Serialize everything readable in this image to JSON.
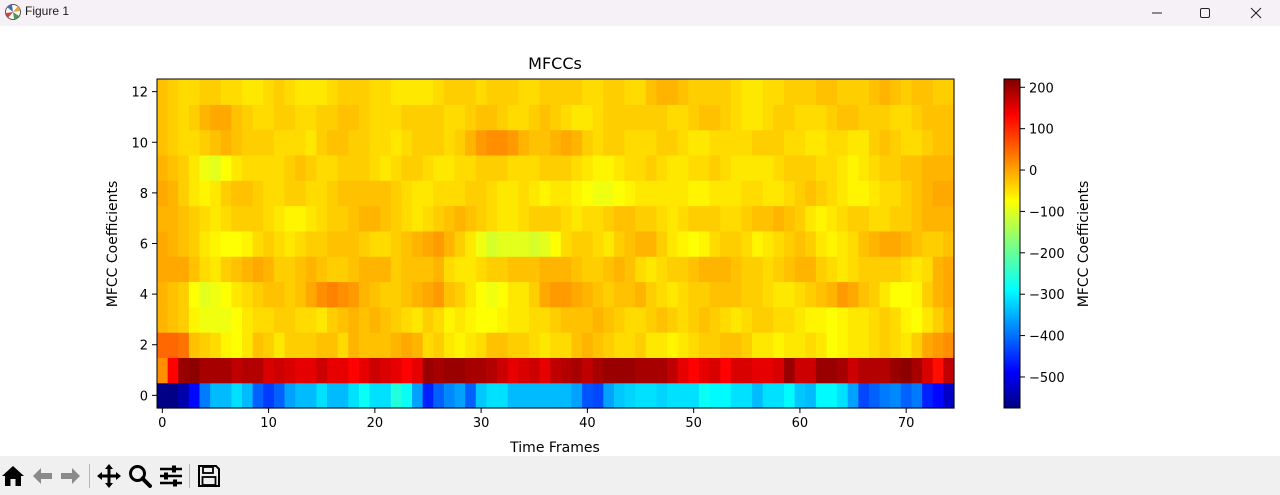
{
  "window": {
    "title": "Figure 1",
    "icon": "matplotlib-logo-icon",
    "controls": [
      "minimize-icon",
      "maximize-icon",
      "close-icon"
    ]
  },
  "toolbar": {
    "buttons": [
      {
        "name": "home-button",
        "icon": "home-icon"
      },
      {
        "name": "back-button",
        "icon": "arrow-left-icon"
      },
      {
        "name": "forward-button",
        "icon": "arrow-right-icon"
      },
      {
        "name": "pan-button",
        "icon": "move-icon"
      },
      {
        "name": "zoom-button",
        "icon": "magnifier-icon"
      },
      {
        "name": "configure-subplots-button",
        "icon": "sliders-icon"
      },
      {
        "name": "save-button",
        "icon": "floppy-disk-icon"
      }
    ]
  },
  "chart_data": {
    "type": "heatmap",
    "title": "MFCCs",
    "xlabel": "Time Frames",
    "ylabel": "MFCC Coefficients",
    "xlim": [
      -0.5,
      74.5
    ],
    "ylim": [
      -0.5,
      12.5
    ],
    "xticks": [
      0,
      10,
      20,
      30,
      40,
      50,
      60,
      70
    ],
    "yticks": [
      0,
      2,
      4,
      6,
      8,
      10,
      12
    ],
    "colormap": "jet",
    "colorbar": {
      "label": "MFCC Coefficients",
      "range": [
        -575,
        220
      ],
      "ticks": [
        200,
        100,
        0,
        -100,
        -200,
        -300,
        -400,
        -500
      ],
      "tick_labels": [
        "200",
        "100",
        "0",
        "−100",
        "−200",
        "−300",
        "−400",
        "−500"
      ]
    },
    "n_frames": 75,
    "n_coefficients": 13,
    "rows": [
      [
        -570,
        -570,
        -540,
        -470,
        -380,
        -330,
        -330,
        -300,
        -330,
        -400,
        -430,
        -400,
        -350,
        -330,
        -330,
        -300,
        -330,
        -330,
        -300,
        -270,
        -300,
        -300,
        -250,
        -270,
        -350,
        -450,
        -400,
        -370,
        -350,
        -400,
        -320,
        -300,
        -300,
        -330,
        -330,
        -330,
        -330,
        -330,
        -330,
        -350,
        -410,
        -420,
        -350,
        -320,
        -310,
        -300,
        -300,
        -310,
        -300,
        -300,
        -300,
        -270,
        -280,
        -280,
        -300,
        -300,
        -330,
        -300,
        -300,
        -280,
        -320,
        -330,
        -280,
        -280,
        -300,
        -350,
        -420,
        -400,
        -380,
        -370,
        -400,
        -380,
        -450,
        -470,
        -520
      ],
      [
        10,
        120,
        200,
        210,
        190,
        190,
        190,
        170,
        180,
        180,
        150,
        160,
        150,
        140,
        140,
        160,
        140,
        140,
        120,
        140,
        160,
        150,
        140,
        120,
        140,
        200,
        190,
        200,
        200,
        190,
        190,
        180,
        160,
        140,
        150,
        160,
        140,
        170,
        180,
        190,
        170,
        190,
        200,
        200,
        200,
        190,
        190,
        190,
        170,
        140,
        120,
        140,
        150,
        120,
        150,
        150,
        140,
        140,
        150,
        200,
        160,
        160,
        200,
        200,
        190,
        160,
        180,
        180,
        180,
        200,
        210,
        190,
        150,
        110,
        170
      ],
      [
        40,
        40,
        30,
        -30,
        -40,
        -50,
        -70,
        -80,
        -60,
        -30,
        -40,
        -60,
        -40,
        -40,
        -40,
        -30,
        -30,
        -50,
        -20,
        -30,
        -30,
        -30,
        -20,
        -10,
        -20,
        -50,
        -40,
        -60,
        -70,
        -60,
        -50,
        -30,
        -30,
        -40,
        -40,
        -50,
        -60,
        -50,
        -50,
        -30,
        -20,
        -30,
        -40,
        -50,
        -50,
        -40,
        -60,
        -60,
        -70,
        -60,
        -50,
        -40,
        -40,
        -30,
        -30,
        -40,
        -60,
        -60,
        -70,
        -60,
        -60,
        -50,
        -60,
        -80,
        -70,
        -60,
        -60,
        -50,
        -40,
        -50,
        -60,
        -40,
        -10,
        0,
        10
      ],
      [
        -20,
        -30,
        -40,
        -70,
        -90,
        -90,
        -90,
        -80,
        -60,
        -50,
        -50,
        -40,
        -40,
        -50,
        -50,
        -60,
        -40,
        -30,
        -20,
        -30,
        -20,
        -30,
        -40,
        -50,
        -60,
        -40,
        -50,
        -70,
        -60,
        -70,
        -80,
        -80,
        -70,
        -60,
        -60,
        -50,
        -50,
        -40,
        -30,
        -30,
        -30,
        -20,
        -30,
        -40,
        -50,
        -50,
        -40,
        -30,
        -40,
        -50,
        -40,
        -30,
        -40,
        -50,
        -60,
        -50,
        -40,
        -40,
        -50,
        -50,
        -60,
        -70,
        -70,
        -80,
        -70,
        -60,
        -60,
        -50,
        -40,
        -50,
        -70,
        -80,
        -60,
        -40,
        -20
      ],
      [
        -20,
        -30,
        -40,
        -80,
        -100,
        -90,
        -80,
        -60,
        -50,
        -40,
        -30,
        -30,
        -40,
        -30,
        -10,
        10,
        20,
        10,
        0,
        -20,
        -30,
        -40,
        -40,
        -30,
        -20,
        -10,
        0,
        -30,
        -40,
        -60,
        -80,
        -90,
        -80,
        -60,
        -60,
        -40,
        -10,
        0,
        0,
        -10,
        -20,
        -30,
        -40,
        -30,
        -30,
        -20,
        -40,
        -50,
        -60,
        -50,
        -40,
        -40,
        -30,
        -30,
        -30,
        -40,
        -40,
        -50,
        -60,
        -60,
        -50,
        -40,
        -30,
        -20,
        0,
        -10,
        -30,
        -40,
        -60,
        -80,
        -80,
        -70,
        -40,
        -20,
        -10
      ],
      [
        -10,
        -10,
        -10,
        -30,
        -50,
        -60,
        -40,
        -30,
        -20,
        -10,
        -20,
        -40,
        -40,
        -30,
        -20,
        -30,
        -40,
        -40,
        -30,
        -20,
        -20,
        -20,
        -40,
        -30,
        -30,
        -30,
        -20,
        -50,
        -60,
        -60,
        -50,
        -40,
        -40,
        -30,
        -30,
        -30,
        -20,
        -20,
        -20,
        -30,
        -40,
        -40,
        -30,
        -20,
        -30,
        -50,
        -60,
        -50,
        -40,
        -40,
        -30,
        -20,
        -20,
        -20,
        -30,
        -40,
        -40,
        -50,
        -40,
        -30,
        -20,
        -20,
        -40,
        -50,
        -60,
        -50,
        -40,
        -40,
        -40,
        -40,
        -50,
        -60,
        -50,
        -20,
        -10
      ],
      [
        -10,
        -20,
        -30,
        -40,
        -60,
        -70,
        -80,
        -80,
        -70,
        -50,
        -40,
        -50,
        -60,
        -50,
        -40,
        -40,
        -30,
        -30,
        -30,
        -40,
        -50,
        -50,
        -40,
        -30,
        -20,
        -10,
        0,
        -20,
        -40,
        -60,
        -90,
        -110,
        -100,
        -100,
        -100,
        -110,
        -100,
        -80,
        -50,
        -40,
        -40,
        -50,
        -60,
        -40,
        -30,
        -20,
        -20,
        -40,
        -60,
        -70,
        -80,
        -70,
        -50,
        -40,
        -40,
        -50,
        -70,
        -60,
        -50,
        -40,
        -30,
        -40,
        -60,
        -70,
        -60,
        -50,
        -30,
        -20,
        -10,
        -10,
        -20,
        -30,
        -40,
        -40,
        -30
      ],
      [
        -20,
        -20,
        -30,
        -40,
        -50,
        -60,
        -50,
        -40,
        -40,
        -40,
        -50,
        -60,
        -70,
        -70,
        -60,
        -50,
        -40,
        -40,
        -30,
        -20,
        -20,
        -30,
        -40,
        -50,
        -60,
        -50,
        -40,
        -30,
        -20,
        -30,
        -40,
        -50,
        -60,
        -60,
        -50,
        -40,
        -40,
        -40,
        -50,
        -60,
        -50,
        -50,
        -40,
        -30,
        -30,
        -40,
        -40,
        -50,
        -60,
        -50,
        -40,
        -40,
        -40,
        -50,
        -50,
        -40,
        -30,
        -30,
        -20,
        -30,
        -40,
        -60,
        -70,
        -60,
        -50,
        -40,
        -40,
        -50,
        -50,
        -40,
        -40,
        -30,
        -20,
        -20,
        -20
      ],
      [
        -10,
        -20,
        -40,
        -60,
        -70,
        -60,
        -40,
        -30,
        -30,
        -40,
        -50,
        -50,
        -40,
        -40,
        -50,
        -50,
        -40,
        -30,
        -30,
        -30,
        -30,
        -30,
        -40,
        -50,
        -60,
        -60,
        -50,
        -50,
        -50,
        -40,
        -40,
        -50,
        -60,
        -60,
        -50,
        -60,
        -70,
        -60,
        -60,
        -70,
        -80,
        -90,
        -90,
        -80,
        -70,
        -60,
        -60,
        -60,
        -60,
        -60,
        -70,
        -70,
        -60,
        -60,
        -60,
        -50,
        -50,
        -60,
        -60,
        -50,
        -40,
        -30,
        -40,
        -50,
        -60,
        -70,
        -70,
        -60,
        -50,
        -50,
        -40,
        -30,
        -20,
        -10,
        -10
      ],
      [
        -20,
        -30,
        -40,
        -60,
        -90,
        -100,
        -80,
        -60,
        -50,
        -50,
        -50,
        -50,
        -40,
        -30,
        -40,
        -50,
        -50,
        -40,
        -40,
        -40,
        -50,
        -60,
        -50,
        -40,
        -40,
        -50,
        -60,
        -60,
        -50,
        -50,
        -40,
        -40,
        -40,
        -50,
        -50,
        -50,
        -40,
        -40,
        -40,
        -50,
        -60,
        -70,
        -70,
        -60,
        -50,
        -50,
        -40,
        -50,
        -60,
        -60,
        -50,
        -50,
        -40,
        -50,
        -60,
        -60,
        -60,
        -60,
        -50,
        -40,
        -40,
        -40,
        -50,
        -50,
        -60,
        -70,
        -60,
        -50,
        -40,
        -40,
        -30,
        -30,
        -20,
        -20,
        -20
      ],
      [
        -30,
        -40,
        -50,
        -50,
        -40,
        -30,
        -20,
        -30,
        -40,
        -40,
        -40,
        -50,
        -50,
        -50,
        -60,
        -40,
        -30,
        -30,
        -40,
        -40,
        -50,
        -50,
        -60,
        -50,
        -40,
        -40,
        -40,
        -50,
        -40,
        -20,
        0,
        10,
        10,
        0,
        -20,
        -30,
        -30,
        -20,
        -10,
        -20,
        -40,
        -50,
        -40,
        -40,
        -50,
        -50,
        -50,
        -40,
        -40,
        -50,
        -60,
        -60,
        -50,
        -50,
        -50,
        -50,
        -40,
        -40,
        -40,
        -50,
        -50,
        -60,
        -60,
        -50,
        -50,
        -60,
        -60,
        -40,
        -30,
        -40,
        -50,
        -50,
        -40,
        -30,
        -30
      ],
      [
        -30,
        -40,
        -50,
        -40,
        -20,
        -10,
        -10,
        -30,
        -40,
        -50,
        -50,
        -40,
        -40,
        -50,
        -50,
        -40,
        -40,
        -30,
        -30,
        -40,
        -50,
        -50,
        -50,
        -40,
        -40,
        -40,
        -40,
        -50,
        -50,
        -40,
        -30,
        -30,
        -40,
        -50,
        -50,
        -40,
        -30,
        -40,
        -50,
        -60,
        -60,
        -50,
        -40,
        -40,
        -40,
        -40,
        -40,
        -40,
        -50,
        -50,
        -40,
        -30,
        -30,
        -40,
        -50,
        -60,
        -60,
        -50,
        -40,
        -40,
        -50,
        -50,
        -50,
        -40,
        -30,
        -30,
        -40,
        -40,
        -40,
        -50,
        -50,
        -40,
        -30,
        -30,
        -30
      ],
      [
        -30,
        -40,
        -50,
        -50,
        -40,
        -40,
        -50,
        -50,
        -60,
        -60,
        -50,
        -40,
        -50,
        -60,
        -60,
        -60,
        -50,
        -40,
        -40,
        -40,
        -50,
        -50,
        -60,
        -60,
        -60,
        -60,
        -50,
        -40,
        -40,
        -40,
        -50,
        -40,
        -40,
        -40,
        -50,
        -50,
        -40,
        -40,
        -40,
        -40,
        -50,
        -50,
        -40,
        -40,
        -50,
        -50,
        -30,
        -20,
        -20,
        -30,
        -40,
        -40,
        -40,
        -40,
        -50,
        -60,
        -60,
        -50,
        -50,
        -40,
        -40,
        -40,
        -30,
        -30,
        -40,
        -40,
        -40,
        -30,
        -20,
        -30,
        -40,
        -30,
        -30,
        -40,
        -40
      ]
    ]
  }
}
